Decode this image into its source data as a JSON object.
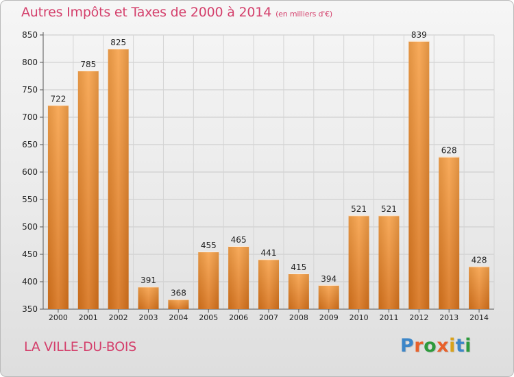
{
  "title": "Autres Impôts et Taxes de 2000 à 2014",
  "title_unit": "(en milliers d'€)",
  "city": "LA VILLE-DU-BOIS",
  "logo": {
    "text": "Proxiti",
    "colors": [
      "#3c86c8",
      "#e8612b",
      "#2d9a3c",
      "#e8612b",
      "#d9a21b",
      "#3c86c8",
      "#2d9a3c"
    ]
  },
  "colors": {
    "title": "#d4406c",
    "bar_light": "#f7a24a",
    "bar_dark": "#d8731c"
  },
  "chart_data": {
    "type": "bar",
    "categories": [
      "2000",
      "2001",
      "2002",
      "2003",
      "2004",
      "2005",
      "2006",
      "2007",
      "2008",
      "2009",
      "2010",
      "2011",
      "2012",
      "2013",
      "2014"
    ],
    "values": [
      722,
      785,
      825,
      391,
      368,
      455,
      465,
      441,
      415,
      394,
      521,
      521,
      839,
      628,
      428
    ],
    "ylim": [
      350,
      850
    ],
    "yticks": [
      350,
      400,
      450,
      500,
      550,
      600,
      650,
      700,
      750,
      800,
      850
    ],
    "grid": true,
    "title": "Autres Impôts et Taxes de 2000 à 2014",
    "xlabel": "",
    "ylabel": ""
  }
}
